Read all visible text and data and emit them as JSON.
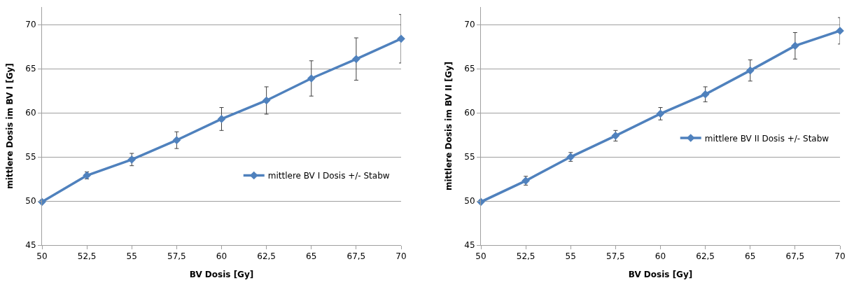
{
  "chart_data": [
    {
      "type": "line",
      "xlabel": "BV Dosis [Gy]",
      "ylabel": "mittlere Dosis im BV I [Gy]",
      "x": [
        50,
        52.5,
        55,
        57.5,
        60,
        62.5,
        65,
        67.5,
        70
      ],
      "series": [
        {
          "name": "mittlere BV I Dosis +/- Stabw",
          "color": "#4f81bd",
          "values": [
            49.9,
            52.9,
            54.7,
            56.9,
            59.3,
            61.4,
            63.9,
            66.1,
            68.4
          ],
          "errors": [
            null,
            0.4,
            0.7,
            0.95,
            1.3,
            1.55,
            2.0,
            2.4,
            2.75
          ]
        }
      ],
      "xlim": [
        50,
        70
      ],
      "xticks": [
        50,
        {
          "value": 52.5,
          "label": "52,5"
        },
        55,
        {
          "value": 57.5,
          "label": "57,5"
        },
        60,
        {
          "value": 62.5,
          "label": "62,5"
        },
        65,
        {
          "value": 67.5,
          "label": "67,5"
        },
        70
      ],
      "ylim": [
        45,
        72
      ],
      "yticks": [
        45,
        50,
        55,
        60,
        65,
        70
      ],
      "grid": "y",
      "legend": "bottom right",
      "marker": "diamond",
      "line_style": "solid"
    },
    {
      "type": "line",
      "xlabel": "BV Dosis [Gy]",
      "ylabel": "mittlere Dosis im BV II [Gy]",
      "x": [
        50,
        52.5,
        55,
        57.5,
        60,
        62.5,
        65,
        67.5,
        70
      ],
      "series": [
        {
          "name": "mittlere BV II Dosis +/- Stabw",
          "color": "#4f81bd",
          "values": [
            49.9,
            52.3,
            55.0,
            57.4,
            59.9,
            62.1,
            64.8,
            67.6,
            69.3
          ],
          "errors": [
            null,
            0.5,
            0.5,
            0.6,
            0.7,
            0.85,
            1.2,
            1.5,
            1.5
          ]
        }
      ],
      "xlim": [
        50,
        70
      ],
      "xticks": [
        50,
        {
          "value": 52.5,
          "label": "52,5"
        },
        55,
        {
          "value": 57.5,
          "label": "57,5"
        },
        60,
        {
          "value": 62.5,
          "label": "62,5"
        },
        65,
        {
          "value": 67.5,
          "label": "67,5"
        },
        70
      ],
      "ylim": [
        45,
        72
      ],
      "yticks": [
        45,
        50,
        55,
        60,
        65,
        70
      ],
      "grid": "y",
      "legend": "right",
      "marker": "diamond",
      "line_style": "solid"
    }
  ]
}
